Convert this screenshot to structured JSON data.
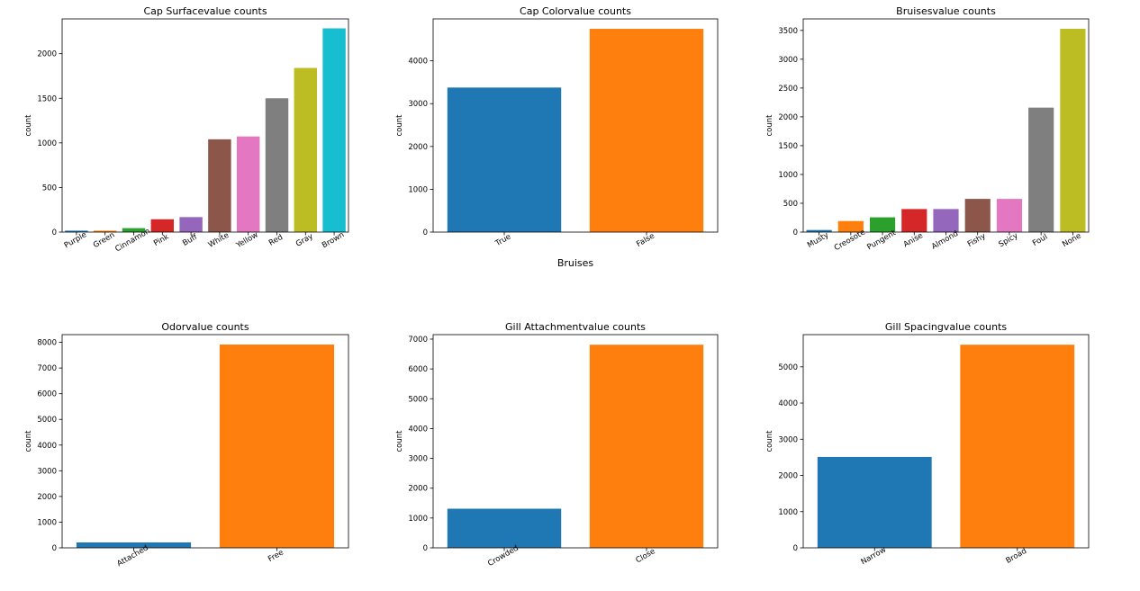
{
  "chart_data": [
    {
      "type": "bar",
      "title": "Cap Surfacevalue counts",
      "ylabel": "count",
      "xlabel": "",
      "categories": [
        "Purple",
        "Green",
        "Cinnamon",
        "Pink",
        "Buff",
        "White",
        "Yellow",
        "Red",
        "Gray",
        "Brown"
      ],
      "values": [
        16,
        16,
        44,
        144,
        168,
        1040,
        1072,
        1500,
        1840,
        2284
      ],
      "ylim": [
        0,
        2390
      ],
      "yticks": [
        0,
        500,
        1000,
        1500,
        2000
      ],
      "colors": [
        "#1f77b4",
        "#ff7f0e",
        "#2ca02c",
        "#d62728",
        "#9467bd",
        "#8c564b",
        "#e377c2",
        "#7f7f7f",
        "#bcbd22",
        "#17becf"
      ]
    },
    {
      "type": "bar",
      "title": "Cap Colorvalue counts",
      "ylabel": "count",
      "xlabel": "Bruises",
      "categories": [
        "True",
        "False"
      ],
      "values": [
        3376,
        4748
      ],
      "ylim": [
        0,
        4980
      ],
      "yticks": [
        0,
        1000,
        2000,
        3000,
        4000
      ],
      "colors": [
        "#1f77b4",
        "#ff7f0e"
      ]
    },
    {
      "type": "bar",
      "title": "Bruisesvalue counts",
      "ylabel": "count",
      "xlabel": "",
      "categories": [
        "Musty",
        "Creosote",
        "Pungent",
        "Anise",
        "Almond",
        "Fishy",
        "Spicy",
        "Foul",
        "None"
      ],
      "values": [
        36,
        192,
        256,
        400,
        400,
        576,
        576,
        2160,
        3528
      ],
      "ylim": [
        0,
        3700
      ],
      "yticks": [
        0,
        500,
        1000,
        1500,
        2000,
        2500,
        3000,
        3500
      ],
      "colors": [
        "#1f77b4",
        "#ff7f0e",
        "#2ca02c",
        "#d62728",
        "#9467bd",
        "#8c564b",
        "#e377c2",
        "#7f7f7f",
        "#bcbd22"
      ]
    },
    {
      "type": "bar",
      "title": "Odorvalue counts",
      "ylabel": "count",
      "xlabel": "",
      "categories": [
        "Attached",
        "Free"
      ],
      "values": [
        210,
        7914
      ],
      "ylim": [
        0,
        8300
      ],
      "yticks": [
        0,
        1000,
        2000,
        3000,
        4000,
        5000,
        6000,
        7000,
        8000
      ],
      "colors": [
        "#1f77b4",
        "#ff7f0e"
      ]
    },
    {
      "type": "bar",
      "title": "Gill Attachmentvalue counts",
      "ylabel": "count",
      "xlabel": "",
      "categories": [
        "Crowded",
        "Close"
      ],
      "values": [
        1312,
        6812
      ],
      "ylim": [
        0,
        7150
      ],
      "yticks": [
        0,
        1000,
        2000,
        3000,
        4000,
        5000,
        6000,
        7000
      ],
      "colors": [
        "#1f77b4",
        "#ff7f0e"
      ]
    },
    {
      "type": "bar",
      "title": "Gill Spacingvalue counts",
      "ylabel": "count",
      "xlabel": "",
      "categories": [
        "Narrow",
        "Broad"
      ],
      "values": [
        2512,
        5612
      ],
      "ylim": [
        0,
        5890
      ],
      "yticks": [
        0,
        1000,
        2000,
        3000,
        4000,
        5000
      ],
      "colors": [
        "#1f77b4",
        "#ff7f0e"
      ]
    }
  ]
}
